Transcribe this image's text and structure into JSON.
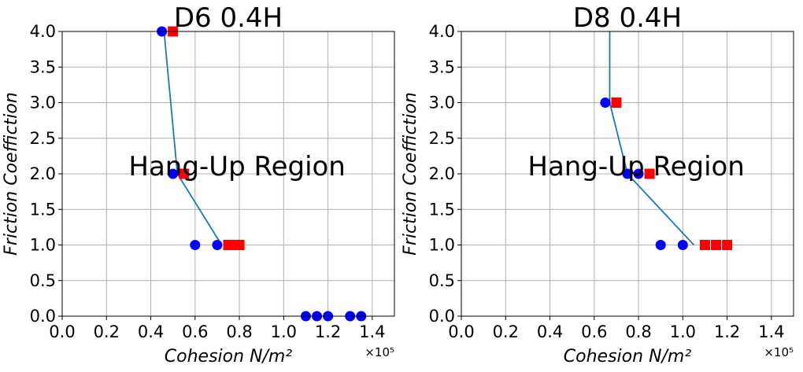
{
  "colors": {
    "blue": "#0000ff",
    "red": "#ff0000",
    "line": "#1f77b4",
    "grid": "#b0b0b0"
  },
  "chart_data": [
    {
      "type": "scatter",
      "title": "D6 0.4H",
      "xlabel": "Cohesion N/m²",
      "ylabel": "Friction Coeffiction",
      "x_scale_label": "×10⁵",
      "annotation": "Hang-Up Region",
      "xlim": [
        0.0,
        1.5
      ],
      "ylim": [
        0.0,
        4.0
      ],
      "xticks": [
        "0.0",
        "0.2",
        "0.4",
        "0.6",
        "0.8",
        "1.0",
        "1.2",
        "1.4"
      ],
      "yticks": [
        "0.0",
        "0.5",
        "1.0",
        "1.5",
        "2.0",
        "2.5",
        "3.0",
        "3.5",
        "4.0"
      ],
      "grid": true,
      "blue_points": [
        [
          0.45,
          4.0
        ],
        [
          0.5,
          2.0
        ],
        [
          0.6,
          1.0
        ],
        [
          0.7,
          1.0
        ],
        [
          1.1,
          0.0
        ],
        [
          1.15,
          0.0
        ],
        [
          1.2,
          0.0
        ],
        [
          1.3,
          0.0
        ],
        [
          1.35,
          0.0
        ]
      ],
      "red_points": [
        [
          0.5,
          4.0
        ],
        [
          0.55,
          2.0
        ],
        [
          0.75,
          1.0
        ],
        [
          0.775,
          1.0
        ],
        [
          0.8,
          1.0
        ]
      ],
      "boundary_line": [
        [
          0.46,
          4.0
        ],
        [
          0.52,
          2.0
        ],
        [
          0.72,
          1.0
        ]
      ]
    },
    {
      "type": "scatter",
      "title": "D8 0.4H",
      "xlabel": "Cohesion N/m²",
      "ylabel": "Friction Coeffiction",
      "x_scale_label": "×10⁵",
      "annotation": "Hang-Up Region",
      "xlim": [
        0.0,
        1.5
      ],
      "ylim": [
        0.0,
        4.0
      ],
      "xticks": [
        "0.0",
        "0.2",
        "0.4",
        "0.6",
        "0.8",
        "1.0",
        "1.2",
        "1.4"
      ],
      "yticks": [
        "0.0",
        "0.5",
        "1.0",
        "1.5",
        "2.0",
        "2.5",
        "3.0",
        "3.5",
        "4.0"
      ],
      "grid": true,
      "blue_points": [
        [
          0.65,
          3.0
        ],
        [
          0.75,
          2.0
        ],
        [
          0.8,
          2.0
        ],
        [
          0.9,
          1.0
        ],
        [
          1.0,
          1.0
        ]
      ],
      "red_points": [
        [
          0.7,
          3.0
        ],
        [
          0.85,
          2.0
        ],
        [
          1.1,
          1.0
        ],
        [
          1.15,
          1.0
        ],
        [
          1.2,
          1.0
        ]
      ],
      "boundary_line": [
        [
          0.67,
          4.0
        ],
        [
          0.67,
          3.0
        ],
        [
          0.75,
          2.0
        ],
        [
          1.05,
          1.0
        ]
      ]
    }
  ]
}
